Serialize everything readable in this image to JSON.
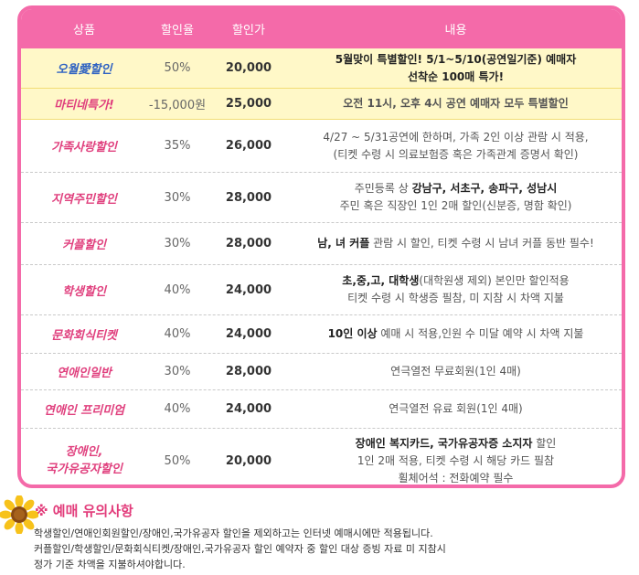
{
  "header": {
    "product": "상품",
    "discount_rate": "할인율",
    "discount_price": "할인가",
    "content": "내용"
  },
  "rows": [
    {
      "name": "오월愛할인",
      "rate": "50%",
      "price": "20,000",
      "c1": "5월맞이 특별할인! 5/1~5/10(공연일기준) 예매자",
      "c2": "선착순 100매 특가!",
      "c3": ""
    },
    {
      "name": "마티네특가!",
      "rate": "-15,000원",
      "price": "25,000",
      "c1": "오전 11시, 오후 4시 공연 예매자 모두 특별할인",
      "c2": "",
      "c3": ""
    },
    {
      "name": "가족사랑할인",
      "rate": "35%",
      "price": "26,000",
      "c1": "4/27 ~ 5/31공연에 한하며, 가족 2인 이상 관람 시 적용,",
      "c2": "(티켓 수령 시 의료보험증 혹은 가족관계 증명서 확인)",
      "c3": ""
    },
    {
      "name": "지역주민할인",
      "rate": "30%",
      "price": "28,000",
      "c1a": "주민등록 상 ",
      "c1b": "강남구, 서초구, 송파구, 성남시",
      "c2": "주민 혹은 직장인 1인 2매 할인(신분증, 명함 확인)",
      "c3": ""
    },
    {
      "name": "커플할인",
      "rate": "30%",
      "price": "28,000",
      "c1a": "남, 녀 커플",
      "c1b": " 관람 시 할인, 티켓 수령 시 남녀 커플 동반  필수!",
      "c2": "",
      "c3": ""
    },
    {
      "name": "학생할인",
      "rate": "40%",
      "price": "24,000",
      "c1a": "초,중,고, 대학생",
      "c1b": "(대학원생 제외) 본인만 할인적용",
      "c2": "티켓 수령 시 학생증 필참, 미 지참 시 차액 지불",
      "c3": ""
    },
    {
      "name": "문화회식티켓",
      "rate": "40%",
      "price": "24,000",
      "c1a": "10인 이상",
      "c1b": " 예매 시 적용,인원 수 미달 예약 시 차액 지불",
      "c2": "",
      "c3": ""
    },
    {
      "name": "연애인일반",
      "rate": "30%",
      "price": "28,000",
      "c1": "연극열전 무료회원(1인 4매)",
      "c2": "",
      "c3": ""
    },
    {
      "name": "연애인 프리미엄",
      "rate": "40%",
      "price": "24,000",
      "c1": "연극열전 유료 회원(1인 4매)",
      "c2": "",
      "c3": ""
    },
    {
      "name1": "장애인,",
      "name2": "국가유공자할인",
      "rate": "50%",
      "price": "20,000",
      "c1a": "장애인 복지카드, 국가유공자증 소지자",
      "c1b": " 할인",
      "c2": "1인 2매 적용, 티켓 수령 시 해당 카드 필참",
      "c3": "휠체어석 : 전화예약 필수"
    }
  ],
  "notice": {
    "title": "※ 예매 유의사항",
    "line1": "학생할인/연애인회원할인/장애인,국가유공자 할인을 제외하고는 인터넷 예매시에만 적용됩니다.",
    "line2": "커플할인/학생할인/문화회식티켓/장애인,국가유공자 할인 예약자 중 할인 대상 증빙 자료 미 지참시",
    "line3": "정가 기준 차액을 지불하셔야합니다."
  },
  "colors": {
    "accent": "#f46aa9",
    "highlight": "#fff8c8",
    "notice": "#e23b7a"
  },
  "icons": {
    "sunflower": "sunflower-icon"
  }
}
